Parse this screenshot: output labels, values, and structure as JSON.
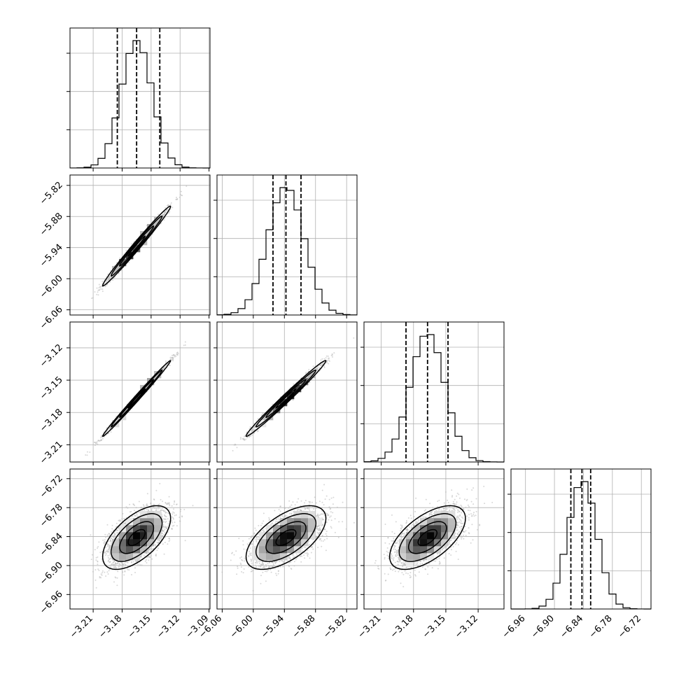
{
  "chart_data": {
    "type": "corner",
    "parameters": [
      {
        "mean": -3.165,
        "sd": 0.016,
        "lo": -3.185,
        "med": -3.165,
        "hi": -3.141,
        "range": [
          -3.234,
          -3.089
        ],
        "ticks": [
          -3.21,
          -3.18,
          -3.15,
          -3.12,
          -3.09
        ],
        "tick_labels": [
          "−3.21",
          "−3.18",
          "−3.15",
          "−3.12",
          "−3.09"
        ]
      },
      {
        "mean": -5.937,
        "sd": 0.035,
        "lo": -5.962,
        "med": -5.937,
        "hi": -5.908,
        "range": [
          -6.07,
          -5.8
        ],
        "ticks": [
          -6.06,
          -6.0,
          -5.94,
          -5.88,
          -5.82
        ],
        "tick_labels": [
          "−6.06",
          "−6.00",
          "−5.94",
          "−5.88",
          "−5.82"
        ]
      },
      {
        "mean": -3.167,
        "sd": 0.016,
        "lo": -3.187,
        "med": -3.167,
        "hi": -3.148,
        "range": [
          -3.226,
          -3.096
        ],
        "ticks": [
          -3.21,
          -3.18,
          -3.15,
          -3.12
        ],
        "tick_labels": [
          "−3.21",
          "−3.18",
          "−3.15",
          "−3.12"
        ]
      },
      {
        "mean": -6.842,
        "sd": 0.03,
        "lo": -6.866,
        "med": -6.843,
        "hi": -6.825,
        "range": [
          -6.99,
          -6.7
        ],
        "ticks": [
          -6.96,
          -6.9,
          -6.84,
          -6.78,
          -6.72
        ],
        "tick_labels": [
          "−6.96",
          "−6.90",
          "−6.84",
          "−6.78",
          "−6.72"
        ]
      }
    ],
    "correlations": [
      [
        1,
        0.99,
        0.995,
        0.6
      ],
      [
        0.99,
        1,
        0.99,
        0.6
      ],
      [
        0.995,
        0.99,
        1,
        0.6
      ],
      [
        0.6,
        0.6,
        0.6,
        1
      ]
    ],
    "grid": true,
    "colors": {
      "line": "#000000",
      "samples": "#b8b8b8",
      "grid": "#b0b0b0"
    }
  }
}
